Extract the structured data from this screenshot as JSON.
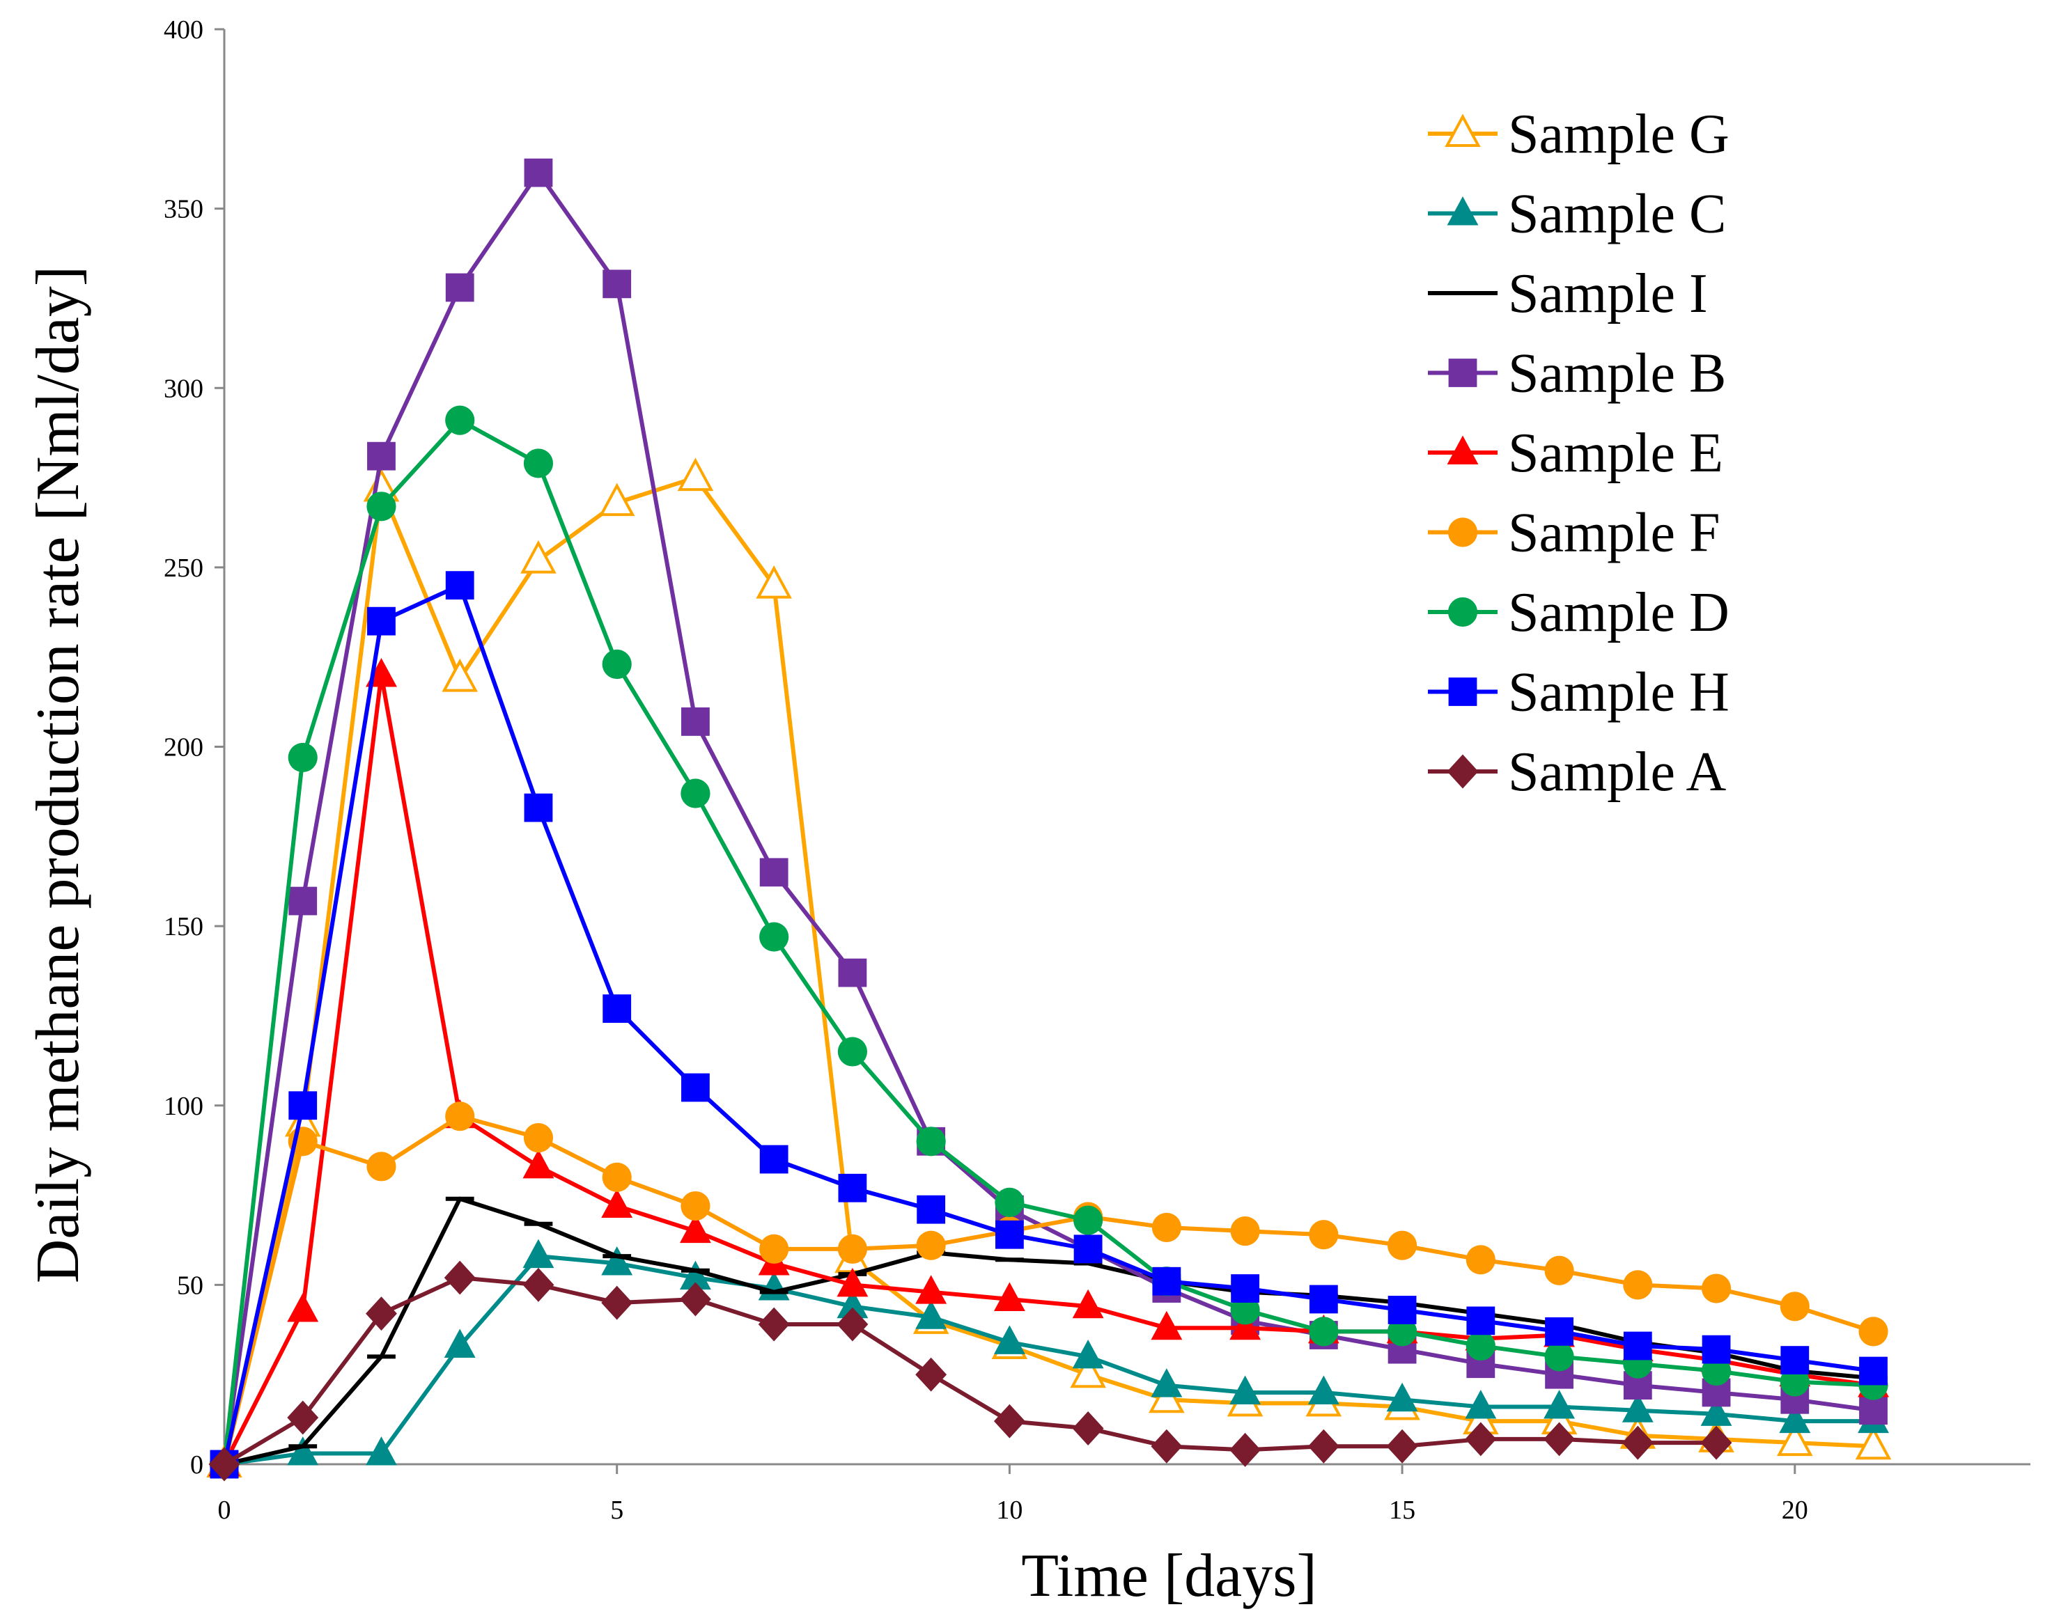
{
  "chart_data": {
    "type": "line",
    "title": "",
    "xlabel": "Time [days]",
    "ylabel": "Daily methane production rate [Nml/day]",
    "xlim": [
      0,
      23
    ],
    "ylim": [
      0,
      400
    ],
    "xticks": [
      0,
      5,
      10,
      15,
      20
    ],
    "yticks": [
      0,
      50,
      100,
      150,
      200,
      250,
      300,
      350,
      400
    ],
    "grid": false,
    "legend_position": "top-right",
    "series": [
      {
        "name": "Sample G",
        "color": "#FFA500",
        "marker": "triangle-open",
        "x": [
          0,
          1,
          2,
          3,
          4,
          5,
          6,
          7,
          8,
          9,
          10,
          11,
          12,
          13,
          14,
          15,
          16,
          17,
          18,
          19,
          20,
          21
        ],
        "values": [
          0,
          95,
          272,
          219,
          252,
          268,
          275,
          245,
          57,
          40,
          33,
          25,
          18,
          17,
          17,
          16,
          12,
          12,
          8,
          7,
          6,
          5
        ]
      },
      {
        "name": "Sample C",
        "color": "#008B8B",
        "marker": "triangle",
        "x": [
          0,
          1,
          2,
          3,
          4,
          5,
          6,
          7,
          8,
          9,
          10,
          11,
          12,
          13,
          14,
          15,
          16,
          17,
          18,
          19,
          20,
          21
        ],
        "values": [
          0,
          3,
          3,
          33,
          58,
          56,
          52,
          49,
          44,
          41,
          34,
          30,
          22,
          20,
          20,
          18,
          16,
          16,
          15,
          14,
          12,
          12
        ]
      },
      {
        "name": "Sample I",
        "color": "#000000",
        "marker": "dash",
        "x": [
          0,
          1,
          2,
          3,
          4,
          5,
          6,
          7,
          8,
          9,
          10,
          11,
          12,
          13,
          14,
          15,
          16,
          17,
          18,
          19,
          20,
          21
        ],
        "values": [
          0,
          5,
          30,
          74,
          67,
          58,
          54,
          48,
          53,
          59,
          57,
          56,
          51,
          48,
          47,
          45,
          42,
          39,
          34,
          31,
          26,
          24
        ]
      },
      {
        "name": "Sample B",
        "color": "#7030A0",
        "marker": "square",
        "x": [
          0,
          1,
          2,
          3,
          4,
          5,
          6,
          7,
          8,
          9,
          10,
          11,
          12,
          13,
          14,
          15,
          16,
          17,
          18,
          19,
          20,
          21
        ],
        "values": [
          0,
          157,
          281,
          328,
          360,
          329,
          207,
          165,
          137,
          90,
          71,
          60,
          49,
          40,
          36,
          32,
          28,
          25,
          22,
          20,
          18,
          15
        ]
      },
      {
        "name": "Sample E",
        "color": "#FF0000",
        "marker": "triangle",
        "x": [
          0,
          1,
          2,
          3,
          4,
          5,
          6,
          7,
          8,
          9,
          10,
          11,
          12,
          13,
          14,
          15,
          16,
          17,
          18,
          19,
          20,
          21
        ],
        "values": [
          0,
          43,
          220,
          97,
          83,
          72,
          65,
          56,
          50,
          48,
          46,
          44,
          38,
          38,
          37,
          37,
          35,
          36,
          32,
          29,
          25,
          22
        ]
      },
      {
        "name": "Sample F",
        "color": "#FF9900",
        "marker": "circle",
        "x": [
          0,
          1,
          2,
          3,
          4,
          5,
          6,
          7,
          8,
          9,
          10,
          11,
          12,
          13,
          14,
          15,
          16,
          17,
          18,
          19,
          20,
          21
        ],
        "values": [
          0,
          90,
          83,
          97,
          91,
          80,
          72,
          60,
          60,
          61,
          65,
          69,
          66,
          65,
          64,
          61,
          57,
          54,
          50,
          49,
          44,
          37
        ]
      },
      {
        "name": "Sample D",
        "color": "#00A550",
        "marker": "circle",
        "x": [
          0,
          1,
          2,
          3,
          4,
          5,
          6,
          7,
          8,
          9,
          10,
          11,
          12,
          13,
          14,
          15,
          16,
          17,
          18,
          19,
          20,
          21
        ],
        "values": [
          0,
          197,
          267,
          291,
          279,
          223,
          187,
          147,
          115,
          90,
          73,
          68,
          51,
          43,
          37,
          37,
          33,
          30,
          28,
          26,
          23,
          22
        ]
      },
      {
        "name": "Sample H",
        "color": "#0000FF",
        "marker": "square",
        "x": [
          0,
          1,
          2,
          3,
          4,
          5,
          6,
          7,
          8,
          9,
          10,
          11,
          12,
          13,
          14,
          15,
          16,
          17,
          18,
          19,
          20,
          21
        ],
        "values": [
          0,
          100,
          235,
          245,
          183,
          127,
          105,
          85,
          77,
          71,
          64,
          60,
          51,
          49,
          46,
          43,
          40,
          37,
          33,
          32,
          29,
          26
        ]
      },
      {
        "name": "Sample A",
        "color": "#7B1C2E",
        "marker": "diamond",
        "x": [
          0,
          1,
          2,
          3,
          4,
          5,
          6,
          7,
          8,
          9,
          10,
          11,
          12,
          13,
          14,
          15,
          16,
          17,
          18,
          19
        ],
        "values": [
          0,
          13,
          42,
          52,
          50,
          45,
          46,
          39,
          39,
          25,
          12,
          10,
          5,
          4,
          5,
          5,
          7,
          7,
          6,
          6
        ]
      }
    ]
  }
}
